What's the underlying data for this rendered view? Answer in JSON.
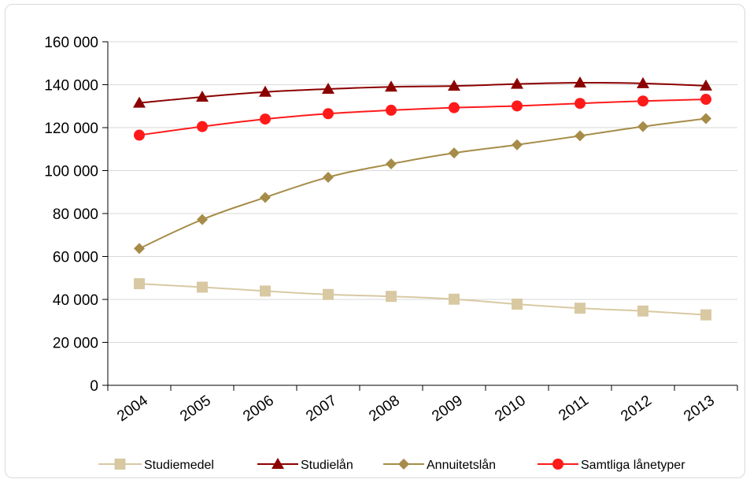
{
  "chart_data": {
    "type": "line",
    "title": "",
    "xlabel": "",
    "ylabel": "",
    "categories": [
      "2004",
      "2005",
      "2006",
      "2007",
      "2008",
      "2009",
      "2010",
      "2011",
      "2012",
      "2013"
    ],
    "ylim": [
      0,
      160000
    ],
    "yticks": [
      0,
      20000,
      40000,
      60000,
      80000,
      100000,
      120000,
      140000,
      160000
    ],
    "ytick_labels": [
      "0",
      "20 000",
      "40 000",
      "60 000",
      "80 000",
      "100 000",
      "120 000",
      "140 000",
      "160 000"
    ],
    "grid": true,
    "legend_position": "bottom",
    "series": [
      {
        "name": "Studiemedel",
        "color": "#d8c9a3",
        "marker": "square",
        "values": [
          47300,
          45700,
          43900,
          42300,
          41400,
          40100,
          37800,
          35900,
          34600,
          32800
        ]
      },
      {
        "name": "Studielån",
        "color": "#8b0000",
        "marker": "triangle",
        "values": [
          131500,
          134300,
          136600,
          138000,
          139000,
          139400,
          140300,
          140900,
          140600,
          139500
        ]
      },
      {
        "name": "Annuitetslån",
        "color": "#a68c48",
        "marker": "diamond",
        "values": [
          63700,
          77200,
          87500,
          96900,
          103100,
          108200,
          112000,
          116200,
          120500,
          124200
        ]
      },
      {
        "name": "Samtliga lånetyper",
        "color": "#ff1a1a",
        "marker": "circle",
        "values": [
          116500,
          120500,
          124000,
          126500,
          128100,
          129300,
          130100,
          131300,
          132400,
          133200
        ]
      }
    ]
  }
}
